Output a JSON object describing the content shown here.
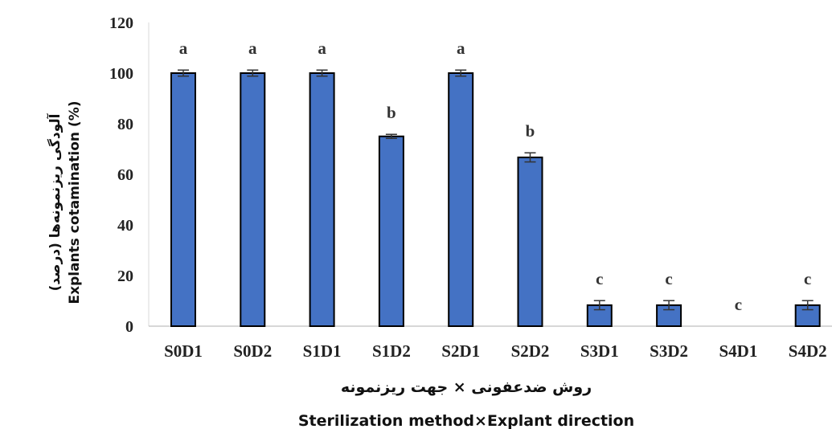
{
  "chart_data": {
    "type": "bar",
    "categories": [
      "S0D1",
      "S0D2",
      "S1D1",
      "S1D2",
      "S2D1",
      "S2D2",
      "S3D1",
      "S3D2",
      "S4D1",
      "S4D2"
    ],
    "values": [
      100,
      100,
      100,
      75,
      100,
      66.7,
      8.3,
      8.3,
      0,
      8.3
    ],
    "errors": [
      1.2,
      1.2,
      1.2,
      0.8,
      1.2,
      1.8,
      1.8,
      1.8,
      0,
      1.8
    ],
    "significance": [
      "a",
      "a",
      "a",
      "b",
      "a",
      "b",
      "c",
      "c",
      "c",
      "c"
    ],
    "ylim": [
      0,
      120
    ],
    "yticks": [
      "0",
      "20",
      "40",
      "60",
      "80",
      "100",
      "120"
    ],
    "ylabel_fa": "آلودگی ریزنمونه‌ها (درصد)",
    "ylabel_en": "Explants cotamination (%)",
    "xlabel_fa": "روش ضدعفونی × جهت ریزنمونه",
    "xlabel_en": "Sterilization method×Explant direction",
    "bar_color": "#4472C4",
    "bar_stroke": "#000000",
    "grid": false,
    "legend": "none"
  }
}
